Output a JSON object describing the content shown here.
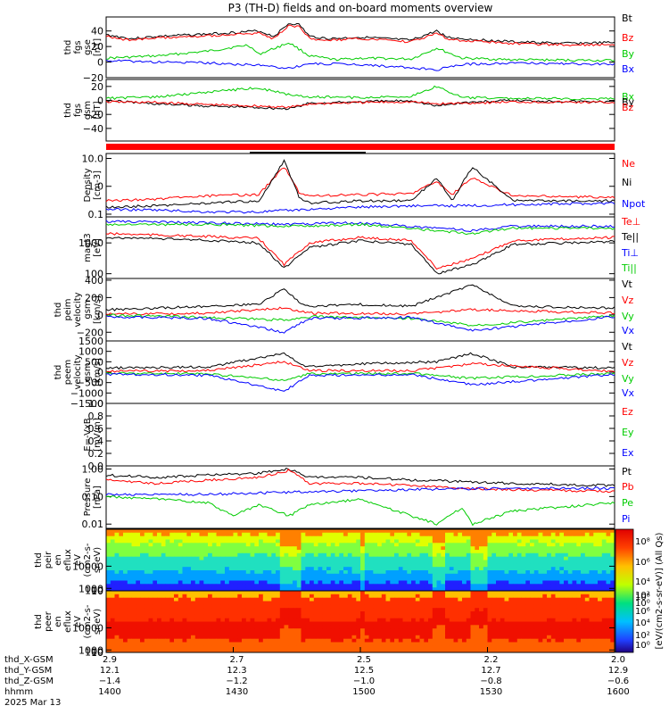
{
  "title": "P3 (TH-D) fields and on-board moments overview",
  "colors": {
    "black": "#000000",
    "red": "#ff0000",
    "green": "#00cc00",
    "blue": "#0000ff"
  },
  "chart_data": [
    {
      "id": "fgs_gse",
      "type": "line",
      "ylabel_lines": [
        "thd",
        "fgs",
        "gse",
        "[nT]"
      ],
      "ylim": [
        -20,
        58
      ],
      "ticks": [
        -20,
        0,
        20,
        40
      ],
      "legend": [
        {
          "name": "Bt",
          "color": "black"
        },
        {
          "name": "Bz",
          "color": "red"
        },
        {
          "name": "By",
          "color": "green"
        },
        {
          "name": "Bx",
          "color": "blue"
        }
      ],
      "series": [
        {
          "name": "Bt",
          "color": "black",
          "x": [
            0,
            0.05,
            0.1,
            0.2,
            0.3,
            0.33,
            0.36,
            0.38,
            0.4,
            0.44,
            0.5,
            0.55,
            0.6,
            0.65,
            0.67,
            0.7,
            0.75,
            0.8,
            0.9,
            1
          ],
          "y": [
            35,
            30,
            33,
            36,
            40,
            33,
            50,
            48,
            33,
            30,
            32,
            30,
            28,
            40,
            32,
            30,
            28,
            26,
            24,
            25
          ]
        },
        {
          "name": "Bz",
          "color": "red",
          "x": [
            0,
            0.05,
            0.1,
            0.2,
            0.3,
            0.33,
            0.36,
            0.38,
            0.4,
            0.44,
            0.5,
            0.55,
            0.6,
            0.65,
            0.67,
            0.7,
            0.75,
            0.8,
            0.9,
            1
          ],
          "y": [
            33,
            28,
            31,
            34,
            37,
            30,
            47,
            45,
            30,
            28,
            30,
            28,
            26,
            37,
            30,
            28,
            26,
            24,
            22,
            23
          ]
        },
        {
          "name": "By",
          "color": "green",
          "x": [
            0,
            0.1,
            0.2,
            0.28,
            0.3,
            0.36,
            0.4,
            0.45,
            0.5,
            0.6,
            0.65,
            0.7,
            0.8,
            1
          ],
          "y": [
            5,
            8,
            14,
            22,
            10,
            25,
            8,
            3,
            5,
            4,
            18,
            5,
            3,
            2
          ]
        },
        {
          "name": "Bx",
          "color": "blue",
          "x": [
            0,
            0.1,
            0.2,
            0.3,
            0.36,
            0.4,
            0.5,
            0.65,
            0.7,
            0.8,
            1
          ],
          "y": [
            2,
            0,
            -1,
            -4,
            -8,
            -2,
            -3,
            -10,
            -3,
            -1,
            -3
          ]
        }
      ]
    },
    {
      "id": "fgs_gsm",
      "type": "line",
      "ylabel_lines": [
        "thd",
        "fgs",
        "gsm",
        "[nT]"
      ],
      "ylim": [
        -58,
        30
      ],
      "ticks": [
        -40,
        -20,
        0,
        20
      ],
      "legend": [
        {
          "name": "Bx",
          "color": "green"
        },
        {
          "name": "By",
          "color": "black"
        },
        {
          "name": "Bz",
          "color": "red"
        }
      ],
      "series": [
        {
          "name": "Bx",
          "color": "green",
          "x": [
            0,
            0.1,
            0.2,
            0.3,
            0.36,
            0.4,
            0.5,
            0.6,
            0.65,
            0.7,
            0.8,
            1
          ],
          "y": [
            3,
            5,
            12,
            18,
            8,
            5,
            4,
            6,
            20,
            4,
            3,
            2
          ]
        },
        {
          "name": "By",
          "color": "black",
          "x": [
            0,
            0.1,
            0.2,
            0.3,
            0.36,
            0.4,
            0.5,
            0.6,
            0.65,
            0.7,
            0.8,
            1
          ],
          "y": [
            0,
            -5,
            -8,
            -10,
            -12,
            -4,
            -2,
            0,
            -8,
            -3,
            0,
            -2
          ]
        },
        {
          "name": "Bz",
          "color": "red",
          "x": [
            0,
            0.1,
            0.2,
            0.3,
            0.36,
            0.4,
            0.5,
            0.6,
            0.65,
            0.7,
            0.8,
            1
          ],
          "y": [
            -2,
            -3,
            -6,
            -8,
            -10,
            -5,
            -3,
            -2,
            -5,
            -4,
            -2,
            -3
          ]
        }
      ]
    },
    {
      "id": "density",
      "type": "line",
      "log": true,
      "ylabel_lines": [
        "Density",
        "[cm-3]"
      ],
      "ylim": [
        0.08,
        15
      ],
      "ticks": [
        0.1,
        1.0,
        10.0
      ],
      "legend": [
        {
          "name": "Ne",
          "color": "red"
        },
        {
          "name": "Ni",
          "color": "black"
        },
        {
          "name": "Npot",
          "color": "blue"
        }
      ],
      "series": [
        {
          "name": "Ne",
          "color": "red",
          "x": [
            0,
            0.1,
            0.2,
            0.3,
            0.35,
            0.38,
            0.4,
            0.5,
            0.6,
            0.65,
            0.68,
            0.72,
            0.8,
            1
          ],
          "y": [
            0.3,
            0.35,
            0.45,
            0.5,
            5,
            0.6,
            0.45,
            0.5,
            0.55,
            1.5,
            0.5,
            2,
            0.45,
            0.4
          ]
        },
        {
          "name": "Ni",
          "color": "black",
          "x": [
            0,
            0.1,
            0.2,
            0.3,
            0.35,
            0.38,
            0.4,
            0.5,
            0.6,
            0.65,
            0.68,
            0.72,
            0.8,
            1
          ],
          "y": [
            0.18,
            0.2,
            0.25,
            0.3,
            8,
            0.4,
            0.25,
            0.3,
            0.3,
            2,
            0.3,
            5,
            0.3,
            0.3
          ]
        },
        {
          "name": "Npot",
          "color": "blue",
          "x": [
            0,
            0.1,
            0.2,
            0.3,
            0.4,
            0.5,
            0.6,
            0.7,
            0.8,
            1
          ],
          "y": [
            0.15,
            0.14,
            0.12,
            0.12,
            0.15,
            0.18,
            0.2,
            0.2,
            0.22,
            0.25
          ]
        }
      ]
    },
    {
      "id": "temperature",
      "type": "line",
      "log": true,
      "ylabel_lines": [
        "magt3",
        "[eV]"
      ],
      "ylim": [
        70,
        7000
      ],
      "ticks": [
        100,
        1000
      ],
      "legend": [
        {
          "name": "Te⊥",
          "color": "red"
        },
        {
          "name": "Te||",
          "color": "black"
        },
        {
          "name": "Ti⊥",
          "color": "blue"
        },
        {
          "name": "Ti||",
          "color": "green"
        }
      ],
      "series": [
        {
          "name": "Ti⊥",
          "color": "blue",
          "x": [
            0,
            0.2,
            0.35,
            0.4,
            0.5,
            0.65,
            0.72,
            0.8,
            1
          ],
          "y": [
            5000,
            4500,
            4000,
            4200,
            4500,
            3000,
            2500,
            3500,
            3500
          ]
        },
        {
          "name": "Ti||",
          "color": "green",
          "x": [
            0,
            0.2,
            0.35,
            0.4,
            0.5,
            0.65,
            0.72,
            0.8,
            1
          ],
          "y": [
            4000,
            4000,
            3500,
            3500,
            4000,
            2500,
            2000,
            3000,
            3000
          ]
        },
        {
          "name": "Te⊥",
          "color": "red",
          "x": [
            0,
            0.1,
            0.2,
            0.3,
            0.35,
            0.4,
            0.5,
            0.6,
            0.65,
            0.72,
            0.8,
            1
          ],
          "y": [
            2000,
            1800,
            1600,
            1400,
            200,
            1000,
            1500,
            1200,
            150,
            300,
            1200,
            1500
          ]
        },
        {
          "name": "Te||",
          "color": "black",
          "x": [
            0,
            0.1,
            0.2,
            0.3,
            0.35,
            0.4,
            0.5,
            0.6,
            0.65,
            0.72,
            0.8,
            1
          ],
          "y": [
            1500,
            1400,
            1200,
            1000,
            150,
            700,
            1200,
            900,
            100,
            200,
            900,
            1100
          ]
        }
      ]
    },
    {
      "id": "peim",
      "type": "line",
      "ylabel_lines": [
        "thd",
        "peim",
        "velocity",
        "gsm",
        "[km/s]"
      ],
      "ylim": [
        -300,
        420
      ],
      "ticks": [
        -200,
        0,
        200,
        400
      ],
      "legend": [
        {
          "name": "Vt",
          "color": "black"
        },
        {
          "name": "Vz",
          "color": "red"
        },
        {
          "name": "Vy",
          "color": "green"
        },
        {
          "name": "Vx",
          "color": "blue"
        }
      ],
      "series": [
        {
          "name": "Vt",
          "color": "black",
          "x": [
            0,
            0.1,
            0.2,
            0.3,
            0.35,
            0.38,
            0.4,
            0.5,
            0.6,
            0.65,
            0.72,
            0.8,
            1
          ],
          "y": [
            60,
            80,
            100,
            120,
            300,
            150,
            100,
            120,
            100,
            200,
            350,
            100,
            80
          ]
        },
        {
          "name": "Vz",
          "color": "red",
          "x": [
            0,
            0.2,
            0.35,
            0.4,
            0.6,
            0.72,
            1
          ],
          "y": [
            10,
            20,
            80,
            20,
            10,
            60,
            20
          ]
        },
        {
          "name": "Vy",
          "color": "green",
          "x": [
            0,
            0.2,
            0.35,
            0.4,
            0.6,
            0.72,
            1
          ],
          "y": [
            0,
            -30,
            -60,
            -20,
            -40,
            -120,
            -10
          ]
        },
        {
          "name": "Vx",
          "color": "blue",
          "x": [
            0,
            0.2,
            0.35,
            0.4,
            0.6,
            0.72,
            1
          ],
          "y": [
            -20,
            -40,
            -200,
            -40,
            -30,
            -180,
            -20
          ]
        }
      ]
    },
    {
      "id": "peem",
      "type": "line",
      "ylabel_lines": [
        "thd",
        "peem",
        "velocity",
        "gsm",
        "[km/s]"
      ],
      "ylim": [
        -1500,
        1500
      ],
      "ticks": [
        -1500,
        -1000,
        -500,
        0,
        500,
        1000,
        1500
      ],
      "legend": [
        {
          "name": "Vt",
          "color": "black"
        },
        {
          "name": "Vz",
          "color": "red"
        },
        {
          "name": "Vy",
          "color": "green"
        },
        {
          "name": "Vx",
          "color": "blue"
        }
      ],
      "series": [
        {
          "name": "Vt",
          "color": "black",
          "x": [
            0,
            0.2,
            0.35,
            0.38,
            0.4,
            0.5,
            0.65,
            0.72,
            0.8,
            1
          ],
          "y": [
            200,
            250,
            900,
            400,
            250,
            400,
            500,
            900,
            250,
            200
          ]
        },
        {
          "name": "Vz",
          "color": "red",
          "x": [
            0,
            0.2,
            0.35,
            0.4,
            0.6,
            0.72,
            1
          ],
          "y": [
            50,
            80,
            500,
            80,
            60,
            400,
            50
          ]
        },
        {
          "name": "Vy",
          "color": "green",
          "x": [
            0,
            0.2,
            0.35,
            0.4,
            0.6,
            0.72,
            1
          ],
          "y": [
            -50,
            -80,
            -400,
            -80,
            -60,
            -300,
            -50
          ]
        },
        {
          "name": "Vx",
          "color": "blue",
          "x": [
            0,
            0.2,
            0.35,
            0.4,
            0.6,
            0.72,
            1
          ],
          "y": [
            -100,
            -150,
            -900,
            -150,
            -120,
            -600,
            -100
          ]
        }
      ]
    },
    {
      "id": "efield",
      "type": "line",
      "ylabel_lines": [
        "E=-VxB",
        "[mV/m]"
      ],
      "ylim": [
        0,
        1
      ],
      "ticks": [
        0.0,
        0.2,
        0.4,
        0.6,
        0.8,
        1.0
      ],
      "legend": [
        {
          "name": "Ez",
          "color": "red"
        },
        {
          "name": "Ey",
          "color": "green"
        },
        {
          "name": "Ex",
          "color": "blue"
        }
      ],
      "series": []
    },
    {
      "id": "pressure",
      "type": "line",
      "log": true,
      "ylabel_lines": [
        "Pressure",
        "[nPa]"
      ],
      "ylim": [
        0.007,
        1.3
      ],
      "ticks": [
        0.01,
        0.1,
        1.0
      ],
      "tick_labels": [
        "0.01",
        "0.10",
        "1.00"
      ],
      "legend": [
        {
          "name": "Pt",
          "color": "black"
        },
        {
          "name": "Pb",
          "color": "red"
        },
        {
          "name": "Pe",
          "color": "green"
        },
        {
          "name": "Pi",
          "color": "blue"
        }
      ],
      "series": [
        {
          "name": "Pt",
          "color": "black",
          "x": [
            0,
            0.1,
            0.2,
            0.3,
            0.36,
            0.4,
            0.5,
            0.6,
            0.7,
            0.8,
            1
          ],
          "y": [
            0.6,
            0.5,
            0.6,
            0.7,
            1.0,
            0.5,
            0.5,
            0.4,
            0.35,
            0.3,
            0.25
          ]
        },
        {
          "name": "Pb",
          "color": "red",
          "x": [
            0,
            0.1,
            0.2,
            0.3,
            0.36,
            0.4,
            0.5,
            0.6,
            0.7,
            0.8,
            1
          ],
          "y": [
            0.4,
            0.3,
            0.4,
            0.5,
            0.9,
            0.3,
            0.3,
            0.25,
            0.2,
            0.18,
            0.15
          ]
        },
        {
          "name": "Pe",
          "color": "green",
          "x": [
            0,
            0.1,
            0.2,
            0.25,
            0.3,
            0.36,
            0.4,
            0.5,
            0.65,
            0.7,
            0.72,
            0.8,
            1
          ],
          "y": [
            0.1,
            0.08,
            0.06,
            0.02,
            0.05,
            0.02,
            0.05,
            0.08,
            0.01,
            0.04,
            0.01,
            0.03,
            0.06
          ]
        },
        {
          "name": "Pi",
          "color": "blue",
          "x": [
            0,
            0.2,
            0.4,
            0.6,
            0.8,
            1
          ],
          "y": [
            0.12,
            0.12,
            0.15,
            0.18,
            0.2,
            0.2
          ]
        }
      ]
    },
    {
      "id": "peir",
      "type": "heatmap",
      "ylabel_lines": [
        "thd",
        "peir",
        "en",
        "eflux",
        "eV",
        "(cm2-s-",
        "sr-eV)"
      ],
      "ylim": [
        7,
        25000
      ],
      "ticks": [
        10,
        100,
        1000,
        10000
      ]
    },
    {
      "id": "peer",
      "type": "heatmap",
      "ylabel_lines": [
        "thd",
        "peer",
        "en",
        "eflux",
        "eV",
        "(cm2-s-",
        "sr-eV)"
      ],
      "ylim": [
        7,
        25000
      ],
      "ticks": [
        10,
        100,
        1000,
        10000
      ]
    }
  ],
  "colorbar": {
    "label": "[eV/(cm2-s-sr-eV)] (All Qs)",
    "top_labels": [
      "10⁸",
      "10⁶",
      "10⁴",
      "10²",
      "10⁰"
    ],
    "bottom_labels": [
      "10⁸",
      "10⁶",
      "10⁴",
      "10²",
      "10⁰"
    ]
  },
  "time_axis": {
    "row_labels": [
      "thd_X-GSM",
      "thd_Y-GSM",
      "thd_Z-GSM",
      "hhmm",
      "2025 Mar 13"
    ],
    "ticks": [
      {
        "x": 0.0,
        "vals": [
          "2.9",
          "12.1",
          "−1.4",
          "1400"
        ]
      },
      {
        "x": 0.25,
        "vals": [
          "2.7",
          "12.3",
          "−1.2",
          "1430"
        ]
      },
      {
        "x": 0.5,
        "vals": [
          "2.5",
          "12.5",
          "−1.0",
          "1500"
        ]
      },
      {
        "x": 0.75,
        "vals": [
          "2.2",
          "12.7",
          "−0.8",
          "1530"
        ]
      },
      {
        "x": 1.0,
        "vals": [
          "2.0",
          "12.9",
          "−0.6",
          "1600"
        ]
      }
    ]
  }
}
